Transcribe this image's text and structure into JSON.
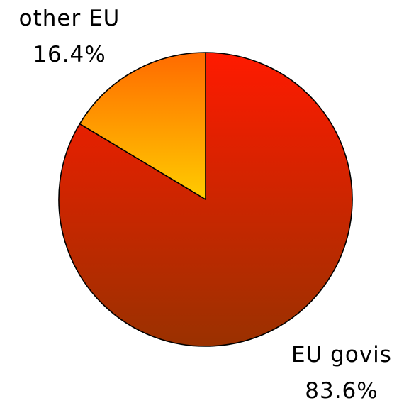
{
  "chart_data": {
    "type": "pie",
    "title": "",
    "slices": [
      {
        "label": "EU govis",
        "value": 83.6,
        "value_label": "83.6%",
        "color_top": "#ff1a00",
        "color_bottom": "#9a3100"
      },
      {
        "label": "other EU",
        "value": 16.4,
        "value_label": "16.4%",
        "color_top": "#ff6a00",
        "color_bottom": "#ffcc00"
      }
    ],
    "start_angle_deg": 0,
    "direction": "clockwise",
    "outline_color": "#000000"
  }
}
